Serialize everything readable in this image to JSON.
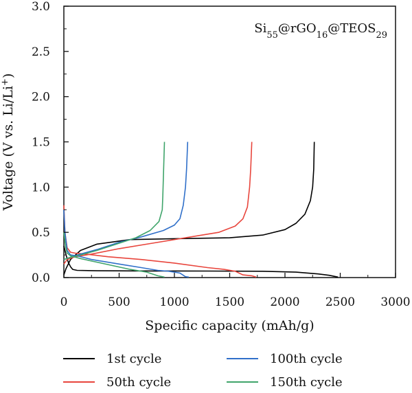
{
  "chart_data": {
    "type": "line",
    "xlabel": "Specific capacity (mAh/g)",
    "ylabel_parts": {
      "main": "Voltage (V vs. Li/Li",
      "sup": "+",
      "end": ")"
    },
    "xlim": [
      0,
      3000
    ],
    "ylim": [
      0,
      3.0
    ],
    "x_ticks": [
      0,
      500,
      1000,
      1500,
      2000,
      2500,
      3000
    ],
    "y_ticks": [
      0.0,
      0.5,
      1.0,
      1.5,
      2.0,
      2.5,
      3.0
    ],
    "x_tick_labels": [
      "0",
      "500",
      "1000",
      "1500",
      "2000",
      "2500",
      "3000"
    ],
    "y_tick_labels": [
      "0.0",
      "0.5",
      "1.0",
      "1.5",
      "2.0",
      "2.5",
      "3.0"
    ],
    "grid": false,
    "legend_position": "bottom",
    "annotation": {
      "parts": [
        {
          "text": "Si",
          "sub": false
        },
        {
          "text": "55",
          "sub": true
        },
        {
          "text": "@rGO",
          "sub": false
        },
        {
          "text": "16",
          "sub": true
        },
        {
          "text": "@TEOS",
          "sub": false
        },
        {
          "text": "29",
          "sub": true
        }
      ]
    },
    "series": [
      {
        "name": "1st cycle",
        "color": "#000000",
        "discharge": [
          [
            0,
            0.35
          ],
          [
            10,
            0.3
          ],
          [
            20,
            0.25
          ],
          [
            40,
            0.17
          ],
          [
            60,
            0.12
          ],
          [
            80,
            0.09
          ],
          [
            120,
            0.08
          ],
          [
            300,
            0.075
          ],
          [
            800,
            0.073
          ],
          [
            1300,
            0.072
          ],
          [
            1800,
            0.07
          ],
          [
            2100,
            0.06
          ],
          [
            2300,
            0.04
          ],
          [
            2400,
            0.025
          ],
          [
            2480,
            0.005
          ]
        ],
        "charge": [
          [
            0,
            0.03
          ],
          [
            20,
            0.1
          ],
          [
            60,
            0.2
          ],
          [
            150,
            0.3
          ],
          [
            300,
            0.37
          ],
          [
            600,
            0.42
          ],
          [
            1000,
            0.43
          ],
          [
            1500,
            0.44
          ],
          [
            1800,
            0.47
          ],
          [
            2000,
            0.53
          ],
          [
            2100,
            0.6
          ],
          [
            2180,
            0.7
          ],
          [
            2230,
            0.85
          ],
          [
            2250,
            1.0
          ],
          [
            2260,
            1.2
          ],
          [
            2265,
            1.5
          ]
        ]
      },
      {
        "name": "50th cycle",
        "color": "#e8453c",
        "discharge": [
          [
            0,
            0.8
          ],
          [
            10,
            0.5
          ],
          [
            30,
            0.33
          ],
          [
            60,
            0.28
          ],
          [
            100,
            0.27
          ],
          [
            200,
            0.26
          ],
          [
            400,
            0.23
          ],
          [
            700,
            0.2
          ],
          [
            1000,
            0.16
          ],
          [
            1300,
            0.11
          ],
          [
            1450,
            0.09
          ],
          [
            1550,
            0.07
          ],
          [
            1620,
            0.03
          ],
          [
            1700,
            0.02
          ],
          [
            1740,
            0.005
          ]
        ],
        "charge": [
          [
            0,
            0.15
          ],
          [
            30,
            0.2
          ],
          [
            100,
            0.23
          ],
          [
            250,
            0.26
          ],
          [
            500,
            0.32
          ],
          [
            800,
            0.38
          ],
          [
            1100,
            0.44
          ],
          [
            1400,
            0.5
          ],
          [
            1550,
            0.57
          ],
          [
            1620,
            0.65
          ],
          [
            1660,
            0.78
          ],
          [
            1680,
            1.0
          ],
          [
            1690,
            1.2
          ],
          [
            1700,
            1.5
          ]
        ]
      },
      {
        "name": "100th cycle",
        "color": "#2f6fc9",
        "discharge": [
          [
            0,
            0.75
          ],
          [
            10,
            0.5
          ],
          [
            30,
            0.3
          ],
          [
            60,
            0.25
          ],
          [
            120,
            0.24
          ],
          [
            250,
            0.2
          ],
          [
            500,
            0.15
          ],
          [
            700,
            0.11
          ],
          [
            850,
            0.08
          ],
          [
            950,
            0.07
          ],
          [
            1050,
            0.05
          ],
          [
            1100,
            0.01
          ],
          [
            1130,
            0.005
          ]
        ],
        "charge": [
          [
            0,
            0.2
          ],
          [
            50,
            0.22
          ],
          [
            150,
            0.26
          ],
          [
            300,
            0.31
          ],
          [
            500,
            0.39
          ],
          [
            700,
            0.45
          ],
          [
            900,
            0.52
          ],
          [
            1000,
            0.58
          ],
          [
            1050,
            0.65
          ],
          [
            1080,
            0.8
          ],
          [
            1100,
            1.0
          ],
          [
            1110,
            1.2
          ],
          [
            1120,
            1.5
          ]
        ]
      },
      {
        "name": "150th cycle",
        "color": "#3fa46a",
        "discharge": [
          [
            0,
            0.5
          ],
          [
            15,
            0.35
          ],
          [
            30,
            0.27
          ],
          [
            60,
            0.24
          ],
          [
            150,
            0.21
          ],
          [
            300,
            0.17
          ],
          [
            450,
            0.13
          ],
          [
            600,
            0.09
          ],
          [
            750,
            0.06
          ],
          [
            850,
            0.02
          ],
          [
            910,
            0.005
          ]
        ],
        "charge": [
          [
            0,
            0.2
          ],
          [
            50,
            0.22
          ],
          [
            150,
            0.25
          ],
          [
            300,
            0.3
          ],
          [
            500,
            0.38
          ],
          [
            650,
            0.44
          ],
          [
            780,
            0.52
          ],
          [
            860,
            0.62
          ],
          [
            890,
            0.75
          ],
          [
            895,
            0.9
          ],
          [
            900,
            1.1
          ],
          [
            905,
            1.3
          ],
          [
            910,
            1.5
          ]
        ]
      }
    ]
  }
}
